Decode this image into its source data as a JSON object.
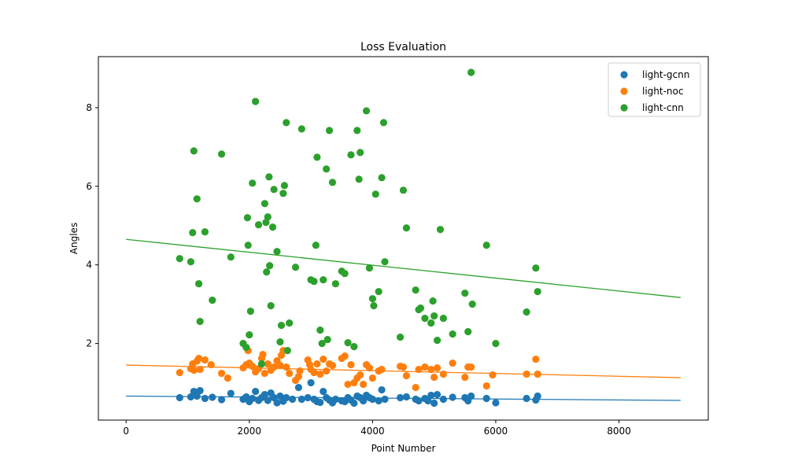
{
  "chart_data": {
    "type": "scatter",
    "title": "Loss Evaluation",
    "xlabel": "Point Number",
    "ylabel": "Angles",
    "xlim": [
      -450,
      9450
    ],
    "ylim": [
      0.05,
      9.3
    ],
    "xticks": [
      0,
      2000,
      4000,
      6000,
      8000
    ],
    "yticks": [
      2,
      4,
      6,
      8
    ],
    "grid": false,
    "legend_position": "top-right",
    "series": [
      {
        "name": "light-gcnn",
        "color": "#1f77b4",
        "points": [
          [
            870,
            0.62
          ],
          [
            1050,
            0.64
          ],
          [
            1100,
            0.78
          ],
          [
            1150,
            0.66
          ],
          [
            1200,
            0.8
          ],
          [
            1280,
            0.6
          ],
          [
            1400,
            0.63
          ],
          [
            1550,
            0.57
          ],
          [
            1700,
            0.73
          ],
          [
            1900,
            0.58
          ],
          [
            1950,
            0.64
          ],
          [
            2000,
            0.52
          ],
          [
            2050,
            0.6
          ],
          [
            2100,
            0.78
          ],
          [
            2150,
            0.55
          ],
          [
            2200,
            0.62
          ],
          [
            2250,
            0.7
          ],
          [
            2300,
            0.55
          ],
          [
            2350,
            0.74
          ],
          [
            2400,
            0.62
          ],
          [
            2450,
            0.49
          ],
          [
            2500,
            0.66
          ],
          [
            2550,
            0.53
          ],
          [
            2600,
            0.62
          ],
          [
            2700,
            0.58
          ],
          [
            2800,
            0.88
          ],
          [
            2850,
            0.58
          ],
          [
            2950,
            0.62
          ],
          [
            3000,
            1.0
          ],
          [
            3050,
            0.58
          ],
          [
            3100,
            0.52
          ],
          [
            3150,
            0.5
          ],
          [
            3200,
            0.78
          ],
          [
            3250,
            0.62
          ],
          [
            3300,
            0.56
          ],
          [
            3350,
            0.49
          ],
          [
            3400,
            0.58
          ],
          [
            3500,
            0.54
          ],
          [
            3550,
            0.52
          ],
          [
            3600,
            0.62
          ],
          [
            3650,
            0.56
          ],
          [
            3700,
            0.48
          ],
          [
            3750,
            0.66
          ],
          [
            3800,
            0.62
          ],
          [
            3850,
            0.54
          ],
          [
            3900,
            0.68
          ],
          [
            3950,
            0.62
          ],
          [
            4000,
            0.58
          ],
          [
            4100,
            0.54
          ],
          [
            4150,
            0.82
          ],
          [
            4200,
            0.58
          ],
          [
            4450,
            0.62
          ],
          [
            4550,
            0.64
          ],
          [
            4700,
            0.58
          ],
          [
            4750,
            0.54
          ],
          [
            4850,
            0.6
          ],
          [
            4900,
            0.54
          ],
          [
            4950,
            0.68
          ],
          [
            5000,
            0.48
          ],
          [
            5050,
            0.7
          ],
          [
            5150,
            0.58
          ],
          [
            5300,
            0.63
          ],
          [
            5500,
            0.62
          ],
          [
            5550,
            0.54
          ],
          [
            5600,
            0.66
          ],
          [
            5850,
            0.6
          ],
          [
            6000,
            0.49
          ],
          [
            6500,
            0.6
          ],
          [
            6650,
            0.56
          ],
          [
            6680,
            0.66
          ]
        ]
      },
      {
        "name": "light-noc",
        "color": "#ff7f0e",
        "points": [
          [
            870,
            1.26
          ],
          [
            1050,
            1.36
          ],
          [
            1080,
            1.48
          ],
          [
            1100,
            1.32
          ],
          [
            1150,
            1.55
          ],
          [
            1180,
            1.62
          ],
          [
            1200,
            1.34
          ],
          [
            1280,
            1.58
          ],
          [
            1380,
            1.46
          ],
          [
            1550,
            1.24
          ],
          [
            1650,
            1.12
          ],
          [
            1900,
            1.38
          ],
          [
            1950,
            1.46
          ],
          [
            1980,
            1.82
          ],
          [
            2000,
            1.5
          ],
          [
            2050,
            1.42
          ],
          [
            2100,
            1.28
          ],
          [
            2150,
            1.36
          ],
          [
            2200,
            1.62
          ],
          [
            2220,
            1.72
          ],
          [
            2250,
            1.24
          ],
          [
            2300,
            1.48
          ],
          [
            2350,
            1.32
          ],
          [
            2400,
            1.4
          ],
          [
            2450,
            1.56
          ],
          [
            2500,
            1.44
          ],
          [
            2520,
            1.7
          ],
          [
            2550,
            1.82
          ],
          [
            2600,
            1.4
          ],
          [
            2650,
            1.24
          ],
          [
            2750,
            1.06
          ],
          [
            2800,
            1.16
          ],
          [
            2820,
            1.3
          ],
          [
            2950,
            1.58
          ],
          [
            2980,
            1.46
          ],
          [
            3000,
            1.34
          ],
          [
            3050,
            1.26
          ],
          [
            3100,
            1.48
          ],
          [
            3150,
            1.22
          ],
          [
            3200,
            1.6
          ],
          [
            3250,
            1.3
          ],
          [
            3300,
            1.48
          ],
          [
            3350,
            1.44
          ],
          [
            3500,
            1.62
          ],
          [
            3550,
            1.68
          ],
          [
            3600,
            0.96
          ],
          [
            3650,
            1.46
          ],
          [
            3700,
            1.0
          ],
          [
            3750,
            1.12
          ],
          [
            3800,
            1.2
          ],
          [
            3850,
            0.96
          ],
          [
            3900,
            1.46
          ],
          [
            3950,
            1.38
          ],
          [
            4000,
            1.12
          ],
          [
            4100,
            1.3
          ],
          [
            4150,
            1.34
          ],
          [
            4450,
            1.42
          ],
          [
            4500,
            1.4
          ],
          [
            4550,
            1.18
          ],
          [
            4700,
            0.88
          ],
          [
            4750,
            1.34
          ],
          [
            4850,
            1.4
          ],
          [
            4950,
            1.34
          ],
          [
            5000,
            1.14
          ],
          [
            5050,
            1.38
          ],
          [
            5150,
            1.22
          ],
          [
            5300,
            1.5
          ],
          [
            5500,
            1.14
          ],
          [
            5550,
            1.4
          ],
          [
            5600,
            1.4
          ],
          [
            5850,
            0.92
          ],
          [
            5950,
            1.2
          ],
          [
            6500,
            1.22
          ],
          [
            6650,
            1.6
          ],
          [
            6680,
            1.22
          ]
        ]
      },
      {
        "name": "light-cnn",
        "color": "#2ca02c",
        "points": [
          [
            870,
            4.16
          ],
          [
            1050,
            4.08
          ],
          [
            1080,
            4.82
          ],
          [
            1100,
            6.9
          ],
          [
            1150,
            5.68
          ],
          [
            1180,
            3.52
          ],
          [
            1200,
            2.56
          ],
          [
            1280,
            4.84
          ],
          [
            1400,
            3.1
          ],
          [
            1550,
            6.82
          ],
          [
            1700,
            4.2
          ],
          [
            1900,
            2.0
          ],
          [
            1950,
            1.9
          ],
          [
            1970,
            5.2
          ],
          [
            1980,
            4.5
          ],
          [
            2000,
            2.22
          ],
          [
            2020,
            2.82
          ],
          [
            2050,
            6.08
          ],
          [
            2100,
            8.16
          ],
          [
            2150,
            5.02
          ],
          [
            2200,
            1.48
          ],
          [
            2250,
            5.56
          ],
          [
            2270,
            5.08
          ],
          [
            2280,
            3.82
          ],
          [
            2300,
            5.22
          ],
          [
            2320,
            6.24
          ],
          [
            2330,
            3.98
          ],
          [
            2350,
            2.96
          ],
          [
            2380,
            4.96
          ],
          [
            2400,
            5.92
          ],
          [
            2450,
            4.34
          ],
          [
            2500,
            2.04
          ],
          [
            2520,
            2.46
          ],
          [
            2550,
            5.82
          ],
          [
            2570,
            6.02
          ],
          [
            2600,
            7.62
          ],
          [
            2620,
            1.82
          ],
          [
            2650,
            2.52
          ],
          [
            2750,
            3.94
          ],
          [
            2850,
            7.46
          ],
          [
            3000,
            3.62
          ],
          [
            3050,
            3.58
          ],
          [
            3080,
            4.5
          ],
          [
            3100,
            6.74
          ],
          [
            3150,
            2.34
          ],
          [
            3180,
            2.0
          ],
          [
            3200,
            3.62
          ],
          [
            3250,
            6.44
          ],
          [
            3270,
            2.1
          ],
          [
            3300,
            7.42
          ],
          [
            3350,
            6.1
          ],
          [
            3400,
            3.52
          ],
          [
            3500,
            3.84
          ],
          [
            3550,
            3.78
          ],
          [
            3600,
            2.02
          ],
          [
            3650,
            6.8
          ],
          [
            3700,
            1.92
          ],
          [
            3750,
            7.42
          ],
          [
            3780,
            6.18
          ],
          [
            3800,
            6.86
          ],
          [
            3900,
            7.92
          ],
          [
            3950,
            3.92
          ],
          [
            4000,
            3.14
          ],
          [
            4020,
            2.96
          ],
          [
            4050,
            5.8
          ],
          [
            4100,
            3.32
          ],
          [
            4150,
            6.22
          ],
          [
            4180,
            7.62
          ],
          [
            4200,
            4.08
          ],
          [
            4450,
            2.16
          ],
          [
            4500,
            5.9
          ],
          [
            4550,
            4.94
          ],
          [
            4700,
            3.36
          ],
          [
            4750,
            2.86
          ],
          [
            4780,
            2.9
          ],
          [
            4850,
            2.64
          ],
          [
            4950,
            2.52
          ],
          [
            4980,
            3.08
          ],
          [
            5000,
            2.7
          ],
          [
            5050,
            2.08
          ],
          [
            5100,
            4.9
          ],
          [
            5150,
            2.64
          ],
          [
            5300,
            2.24
          ],
          [
            5500,
            3.28
          ],
          [
            5550,
            2.3
          ],
          [
            5600,
            8.9
          ],
          [
            5620,
            3.0
          ],
          [
            5850,
            4.5
          ],
          [
            6000,
            2.0
          ],
          [
            6500,
            2.8
          ],
          [
            6650,
            3.92
          ],
          [
            6680,
            3.32
          ]
        ]
      }
    ],
    "trendlines": [
      {
        "series": "light-gcnn",
        "color": "#1f77b4",
        "x": [
          0,
          9000
        ],
        "y": [
          0.66,
          0.55
        ]
      },
      {
        "series": "light-noc",
        "color": "#ff7f0e",
        "x": [
          0,
          9000
        ],
        "y": [
          1.45,
          1.13
        ]
      },
      {
        "series": "light-cnn",
        "color": "#2ca02c",
        "x": [
          0,
          9000
        ],
        "y": [
          4.65,
          3.17
        ]
      }
    ]
  }
}
